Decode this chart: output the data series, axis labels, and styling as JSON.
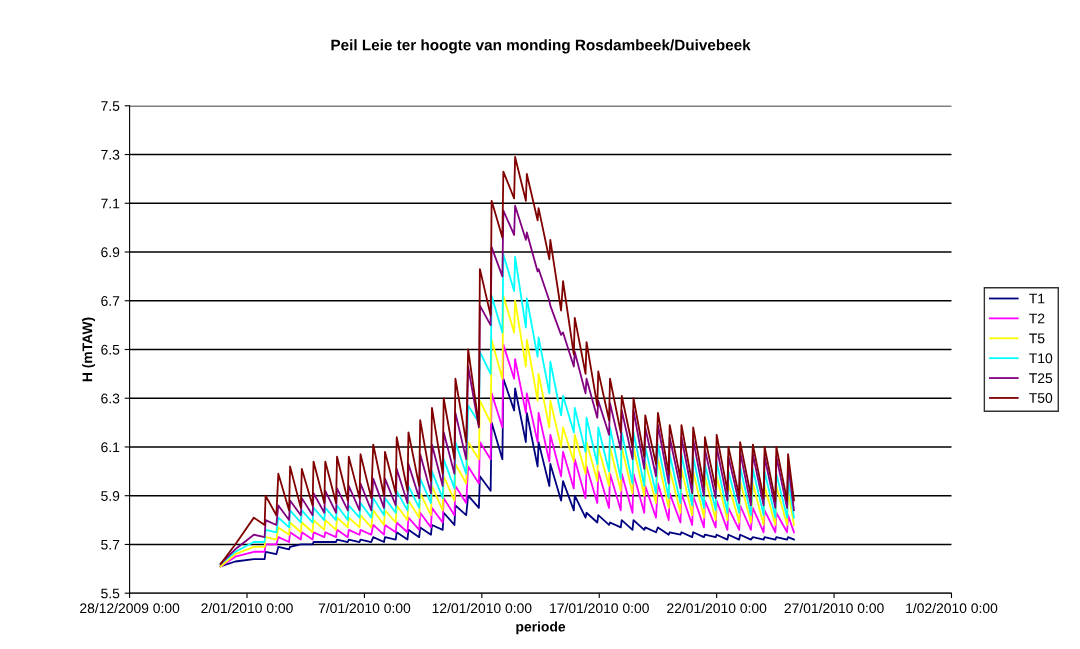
{
  "chart_data": {
    "type": "line",
    "title": "Peil Leie ter hoogte van monding Rosdambeek/Duivebeek",
    "xlabel": "periode",
    "ylabel": "H (mTAW)",
    "x": [
      "2009-12-31T21:00",
      "2010-01-01T12:00",
      "2010-01-02T07:00",
      "2010-01-02T18:00",
      "2010-01-02T19:00",
      "2010-01-03T06:00",
      "2010-01-03T08:00",
      "2010-01-03T19:00",
      "2010-01-03T20:00",
      "2010-01-04T07:00",
      "2010-01-04T08:00",
      "2010-01-04T19:00",
      "2010-01-04T20:00",
      "2010-01-05T07:00",
      "2010-01-05T08:00",
      "2010-01-05T19:00",
      "2010-01-05T20:00",
      "2010-01-06T07:00",
      "2010-01-06T08:00",
      "2010-01-06T19:00",
      "2010-01-06T20:00",
      "2010-01-07T07:00",
      "2010-01-07T09:00",
      "2010-01-07T20:00",
      "2010-01-07T21:00",
      "2010-01-08T08:00",
      "2010-01-08T09:00",
      "2010-01-08T20:00",
      "2010-01-08T21:00",
      "2010-01-09T08:00",
      "2010-01-09T09:00",
      "2010-01-09T20:00",
      "2010-01-09T21:00",
      "2010-01-10T08:00",
      "2010-01-10T09:00",
      "2010-01-10T20:00",
      "2010-01-10T21:00",
      "2010-01-11T08:00",
      "2010-01-11T10:00",
      "2010-01-11T21:00",
      "2010-01-11T22:00",
      "2010-01-12T09:00",
      "2010-01-12T10:00",
      "2010-01-12T21:00",
      "2010-01-12T22:00",
      "2010-01-13T09:00",
      "2010-01-13T10:00",
      "2010-01-13T21:00",
      "2010-01-13T22:00",
      "2010-01-14T09:00",
      "2010-01-14T10:00",
      "2010-01-14T21:00",
      "2010-01-14T22:00",
      "2010-01-15T09:00",
      "2010-01-15T11:00",
      "2010-01-15T22:00",
      "2010-01-15T23:00",
      "2010-01-16T10:00",
      "2010-01-16T11:00",
      "2010-01-16T22:00",
      "2010-01-16T23:00",
      "2010-01-17T10:00",
      "2010-01-17T11:00",
      "2010-01-17T22:00",
      "2010-01-17T23:00",
      "2010-01-18T10:00",
      "2010-01-18T11:00",
      "2010-01-18T22:00",
      "2010-01-18T23:00",
      "2010-01-19T10:00",
      "2010-01-19T12:00",
      "2010-01-19T23:00",
      "2010-01-20T00:00",
      "2010-01-20T11:00",
      "2010-01-20T12:00",
      "2010-01-20T23:00",
      "2010-01-21T00:00",
      "2010-01-21T11:00",
      "2010-01-21T12:00",
      "2010-01-21T23:00",
      "2010-01-22T00:00",
      "2010-01-22T11:00",
      "2010-01-22T12:00",
      "2010-01-22T23:00",
      "2010-01-23T00:00",
      "2010-01-23T11:00",
      "2010-01-23T13:00",
      "2010-01-24T00:00",
      "2010-01-24T01:00",
      "2010-01-24T12:00",
      "2010-01-24T13:00",
      "2010-01-25T00:00",
      "2010-01-25T01:00",
      "2010-01-25T07:00"
    ],
    "series": [
      {
        "name": "T1",
        "color": "#000080",
        "values": [
          5.61,
          5.63,
          5.64,
          5.64,
          5.67,
          5.66,
          5.69,
          5.68,
          5.69,
          5.7,
          5.7,
          5.7,
          5.71,
          5.71,
          5.71,
          5.71,
          5.72,
          5.71,
          5.72,
          5.71,
          5.72,
          5.71,
          5.73,
          5.71,
          5.73,
          5.72,
          5.75,
          5.72,
          5.76,
          5.73,
          5.77,
          5.74,
          5.78,
          5.76,
          5.83,
          5.78,
          5.86,
          5.82,
          5.9,
          5.85,
          5.98,
          5.92,
          6.2,
          6.05,
          6.38,
          6.25,
          6.34,
          6.12,
          6.24,
          6.02,
          6.12,
          5.94,
          6.03,
          5.88,
          5.96,
          5.84,
          5.9,
          5.81,
          5.83,
          5.79,
          5.82,
          5.78,
          5.79,
          5.77,
          5.8,
          5.76,
          5.8,
          5.76,
          5.77,
          5.75,
          5.77,
          5.74,
          5.75,
          5.74,
          5.75,
          5.73,
          5.75,
          5.73,
          5.74,
          5.73,
          5.74,
          5.72,
          5.74,
          5.72,
          5.74,
          5.72,
          5.73,
          5.72,
          5.73,
          5.72,
          5.73,
          5.72,
          5.73,
          5.72
        ]
      },
      {
        "name": "T2",
        "color": "#ff00ff",
        "values": [
          5.61,
          5.65,
          5.67,
          5.67,
          5.7,
          5.7,
          5.73,
          5.71,
          5.75,
          5.72,
          5.75,
          5.72,
          5.75,
          5.73,
          5.75,
          5.73,
          5.76,
          5.73,
          5.76,
          5.74,
          5.76,
          5.74,
          5.78,
          5.74,
          5.78,
          5.75,
          5.79,
          5.75,
          5.81,
          5.76,
          5.83,
          5.77,
          5.85,
          5.79,
          5.89,
          5.82,
          5.94,
          5.87,
          6.02,
          5.95,
          6.12,
          6.05,
          6.32,
          6.18,
          6.52,
          6.38,
          6.46,
          6.24,
          6.32,
          6.12,
          6.24,
          6.04,
          6.15,
          5.98,
          6.08,
          5.93,
          6.05,
          5.89,
          6.02,
          5.87,
          6.0,
          5.85,
          5.99,
          5.84,
          5.99,
          5.83,
          5.99,
          5.83,
          5.94,
          5.81,
          5.95,
          5.8,
          5.91,
          5.79,
          5.91,
          5.78,
          5.9,
          5.77,
          5.88,
          5.77,
          5.88,
          5.76,
          5.85,
          5.76,
          5.86,
          5.76,
          5.85,
          5.75,
          5.84,
          5.75,
          5.83,
          5.75,
          5.82,
          5.75
        ]
      },
      {
        "name": "T5",
        "color": "#ffff00",
        "values": [
          5.61,
          5.66,
          5.69,
          5.69,
          5.73,
          5.72,
          5.77,
          5.74,
          5.79,
          5.75,
          5.79,
          5.75,
          5.8,
          5.76,
          5.8,
          5.76,
          5.81,
          5.77,
          5.81,
          5.77,
          5.82,
          5.77,
          5.84,
          5.78,
          5.84,
          5.79,
          5.86,
          5.8,
          5.88,
          5.81,
          5.91,
          5.82,
          5.94,
          5.84,
          5.98,
          5.88,
          6.03,
          5.95,
          6.12,
          6.05,
          6.29,
          6.2,
          6.54,
          6.38,
          6.72,
          6.57,
          6.7,
          6.43,
          6.54,
          6.29,
          6.4,
          6.18,
          6.29,
          6.1,
          6.18,
          6.04,
          6.15,
          5.99,
          6.12,
          5.96,
          6.1,
          5.94,
          6.1,
          5.92,
          6.1,
          5.91,
          6.1,
          5.9,
          6.04,
          5.87,
          6.05,
          5.85,
          6.01,
          5.83,
          6.01,
          5.82,
          6.0,
          5.81,
          5.98,
          5.8,
          5.98,
          5.8,
          5.95,
          5.79,
          5.96,
          5.79,
          5.95,
          5.78,
          5.94,
          5.78,
          5.94,
          5.78,
          5.92,
          5.78
        ]
      },
      {
        "name": "T10",
        "color": "#00ffff",
        "values": [
          5.62,
          5.67,
          5.71,
          5.71,
          5.76,
          5.75,
          5.81,
          5.77,
          5.84,
          5.79,
          5.84,
          5.79,
          5.85,
          5.8,
          5.85,
          5.8,
          5.86,
          5.8,
          5.86,
          5.81,
          5.87,
          5.81,
          5.89,
          5.82,
          5.89,
          5.83,
          5.92,
          5.84,
          5.94,
          5.85,
          5.97,
          5.87,
          6.0,
          5.89,
          6.05,
          5.93,
          6.12,
          5.99,
          6.27,
          6.2,
          6.49,
          6.4,
          6.72,
          6.57,
          6.89,
          6.74,
          6.88,
          6.59,
          6.71,
          6.47,
          6.55,
          6.32,
          6.45,
          6.23,
          6.31,
          6.16,
          6.26,
          6.08,
          6.22,
          6.03,
          6.18,
          6.0,
          6.18,
          5.97,
          6.16,
          5.95,
          6.16,
          5.94,
          6.1,
          5.91,
          6.11,
          5.89,
          6.07,
          5.87,
          6.07,
          5.86,
          6.06,
          5.85,
          6.03,
          5.84,
          6.04,
          5.83,
          6.0,
          5.83,
          6.02,
          5.82,
          6.01,
          5.82,
          6.0,
          5.81,
          5.99,
          5.81,
          5.97,
          5.81
        ]
      },
      {
        "name": "T25",
        "color": "#800080",
        "values": [
          5.62,
          5.68,
          5.74,
          5.73,
          5.8,
          5.78,
          5.86,
          5.8,
          5.88,
          5.82,
          5.89,
          5.82,
          5.91,
          5.83,
          5.92,
          5.83,
          5.93,
          5.84,
          5.94,
          5.84,
          5.95,
          5.84,
          5.97,
          5.85,
          5.97,
          5.86,
          6.01,
          5.87,
          6.03,
          5.89,
          6.07,
          5.91,
          6.11,
          5.94,
          6.16,
          5.99,
          6.24,
          6.05,
          6.43,
          6.18,
          6.68,
          6.6,
          6.92,
          6.8,
          7.07,
          6.97,
          7.09,
          6.95,
          6.98,
          6.82,
          6.83,
          6.7,
          6.68,
          6.56,
          6.57,
          6.43,
          6.49,
          6.32,
          6.38,
          6.22,
          6.29,
          6.15,
          6.28,
          6.09,
          6.25,
          6.05,
          6.25,
          6.01,
          6.18,
          5.98,
          6.19,
          5.95,
          6.14,
          5.93,
          6.14,
          5.91,
          6.13,
          5.9,
          6.09,
          5.89,
          6.1,
          5.88,
          6.06,
          5.87,
          6.08,
          5.86,
          6.07,
          5.86,
          6.06,
          5.85,
          6.06,
          5.85,
          6.03,
          5.84
        ]
      },
      {
        "name": "T50",
        "color": "#800000",
        "values": [
          5.62,
          5.7,
          5.81,
          5.78,
          5.9,
          5.82,
          5.99,
          5.84,
          6.02,
          5.85,
          6.01,
          5.86,
          6.04,
          5.87,
          6.04,
          5.87,
          6.06,
          5.88,
          6.06,
          5.89,
          6.07,
          5.89,
          6.11,
          5.9,
          6.08,
          5.91,
          6.14,
          5.92,
          6.16,
          5.94,
          6.21,
          5.96,
          6.26,
          5.99,
          6.3,
          6.05,
          6.38,
          6.12,
          6.5,
          6.19,
          6.83,
          6.64,
          7.11,
          6.96,
          7.23,
          7.12,
          7.29,
          7.11,
          7.22,
          7.03,
          7.08,
          6.87,
          6.95,
          6.66,
          6.78,
          6.48,
          6.63,
          6.4,
          6.53,
          6.27,
          6.41,
          6.21,
          6.38,
          6.16,
          6.31,
          6.1,
          6.3,
          6.06,
          6.23,
          6.03,
          6.24,
          5.99,
          6.19,
          5.97,
          6.19,
          5.95,
          6.18,
          5.94,
          6.14,
          5.93,
          6.15,
          5.92,
          6.1,
          5.9,
          6.12,
          5.9,
          6.11,
          5.89,
          6.1,
          5.88,
          6.1,
          5.88,
          6.07,
          5.88
        ]
      }
    ],
    "xlim": [
      "2009-12-28",
      "2010-02-01"
    ],
    "xticks": [
      {
        "value": "2009-12-28",
        "label": "28/12/2009 0:00"
      },
      {
        "value": "2010-01-02",
        "label": "2/01/2010 0:00"
      },
      {
        "value": "2010-01-07",
        "label": "7/01/2010 0:00"
      },
      {
        "value": "2010-01-12",
        "label": "12/01/2010 0:00"
      },
      {
        "value": "2010-01-17",
        "label": "17/01/2010 0:00"
      },
      {
        "value": "2010-01-22",
        "label": "22/01/2010 0:00"
      },
      {
        "value": "2010-01-27",
        "label": "27/01/2010 0:00"
      },
      {
        "value": "2010-02-01",
        "label": "1/02/2010 0:00"
      }
    ],
    "ylim": [
      5.5,
      7.5
    ],
    "yticks": [
      5.5,
      5.7,
      5.9,
      6.1,
      6.3,
      6.5,
      6.7,
      6.9,
      7.1,
      7.3,
      7.5
    ],
    "grid": "y",
    "legend": "right",
    "marker": "none",
    "line_style": "solid"
  }
}
